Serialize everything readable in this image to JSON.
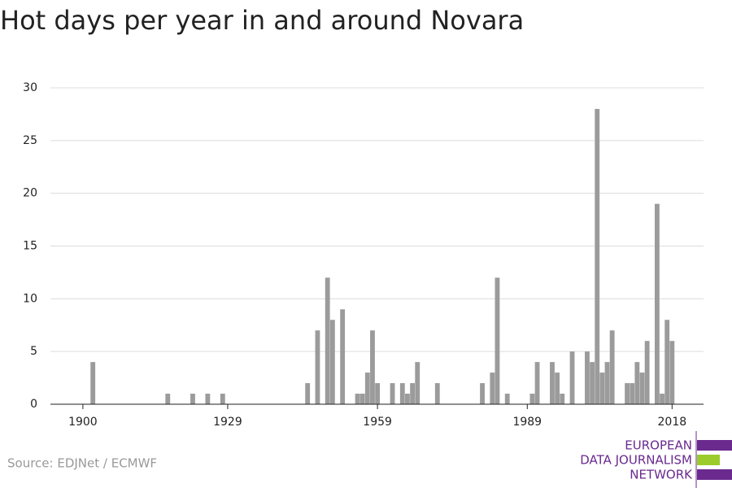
{
  "chart_data": {
    "type": "bar",
    "title": "Hot days per year in and around Novara",
    "source": "Source: EDJNet / ECMWF",
    "logo": [
      "EUROPEAN",
      "DATA JOURNALISM",
      "NETWORK"
    ],
    "x": [
      1902,
      1917,
      1922,
      1925,
      1928,
      1945,
      1947,
      1949,
      1950,
      1952,
      1955,
      1956,
      1957,
      1958,
      1959,
      1962,
      1964,
      1965,
      1966,
      1967,
      1971,
      1980,
      1982,
      1983,
      1985,
      1990,
      1991,
      1994,
      1995,
      1996,
      1998,
      2001,
      2002,
      2003,
      2004,
      2005,
      2006,
      2009,
      2010,
      2011,
      2012,
      2013,
      2015,
      2016,
      2017,
      2018
    ],
    "values": [
      4,
      1,
      1,
      1,
      1,
      2,
      7,
      12,
      8,
      9,
      1,
      1,
      3,
      7,
      2,
      2,
      2,
      1,
      2,
      4,
      2,
      2,
      3,
      12,
      1,
      1,
      4,
      4,
      3,
      1,
      5,
      5,
      4,
      28,
      3,
      4,
      7,
      2,
      2,
      4,
      3,
      6,
      19,
      1,
      8,
      6
    ],
    "color": "#9b9b9b",
    "xlim": [
      1893.5,
      2024.3
    ],
    "xticks": [
      1900,
      1929,
      1959,
      1989,
      2018
    ],
    "ylim": [
      0,
      30
    ],
    "yticks": [
      0,
      5,
      10,
      15,
      20,
      25,
      30
    ],
    "grid": true
  }
}
